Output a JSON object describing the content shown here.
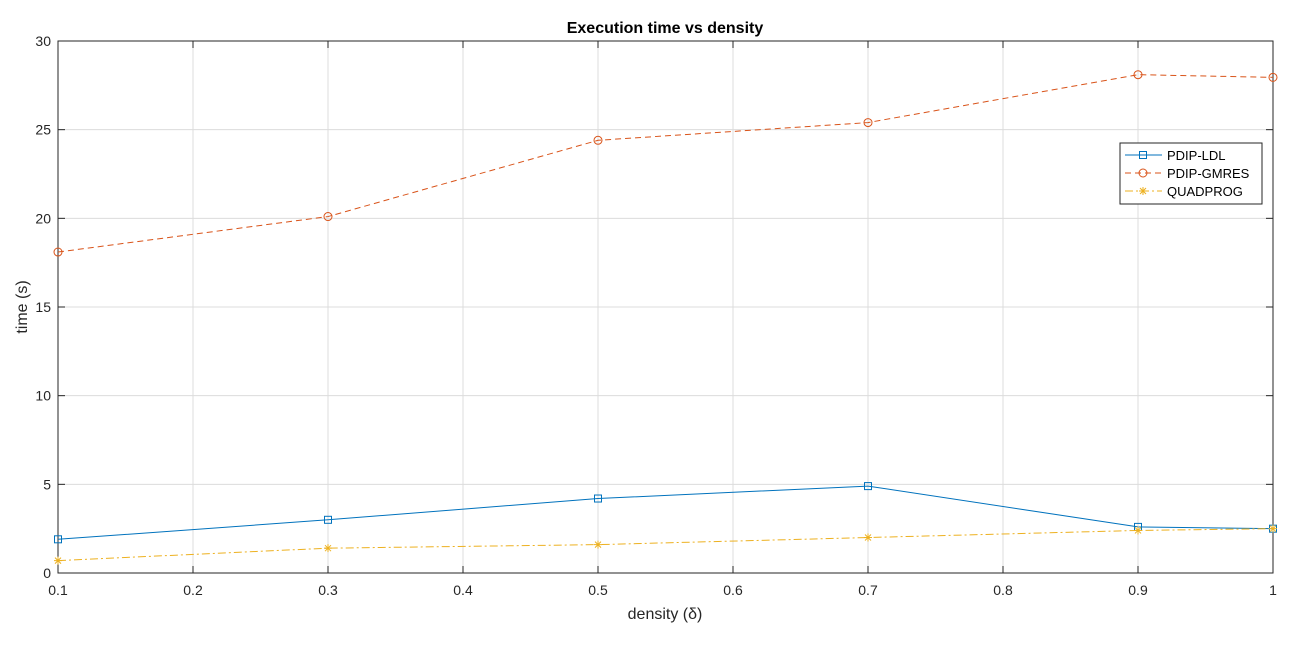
{
  "chart_data": {
    "type": "line",
    "title": "Execution time vs density",
    "xlabel": "density (δ)",
    "ylabel": "time (s)",
    "xlim": [
      0.1,
      1
    ],
    "ylim": [
      0,
      30
    ],
    "xticks": [
      0.1,
      0.2,
      0.3,
      0.4,
      0.5,
      0.6,
      0.7,
      0.8,
      0.9,
      1
    ],
    "xtick_labels": [
      "0.1",
      "0.2",
      "0.3",
      "0.4",
      "0.5",
      "0.6",
      "0.7",
      "0.8",
      "0.9",
      "1"
    ],
    "yticks": [
      0,
      5,
      10,
      15,
      20,
      25,
      30
    ],
    "ytick_labels": [
      "0",
      "5",
      "10",
      "15",
      "20",
      "25",
      "30"
    ],
    "grid": true,
    "legend_position": "top-right",
    "x": [
      0.1,
      0.3,
      0.5,
      0.7,
      0.9,
      1
    ],
    "series": [
      {
        "name": "PDIP-LDL",
        "values": [
          1.9,
          3.0,
          4.2,
          4.9,
          2.6,
          2.5
        ],
        "color": "#0072BD",
        "line_style": "solid",
        "marker": "square"
      },
      {
        "name": "PDIP-GMRES",
        "values": [
          18.1,
          20.1,
          24.4,
          25.4,
          28.1,
          27.95
        ],
        "color": "#D95319",
        "line_style": "dashed",
        "marker": "circle"
      },
      {
        "name": "QUADPROG",
        "values": [
          0.7,
          1.4,
          1.6,
          2.0,
          2.4,
          2.5
        ],
        "color": "#EDB120",
        "line_style": "dashdot",
        "marker": "asterisk"
      }
    ]
  }
}
